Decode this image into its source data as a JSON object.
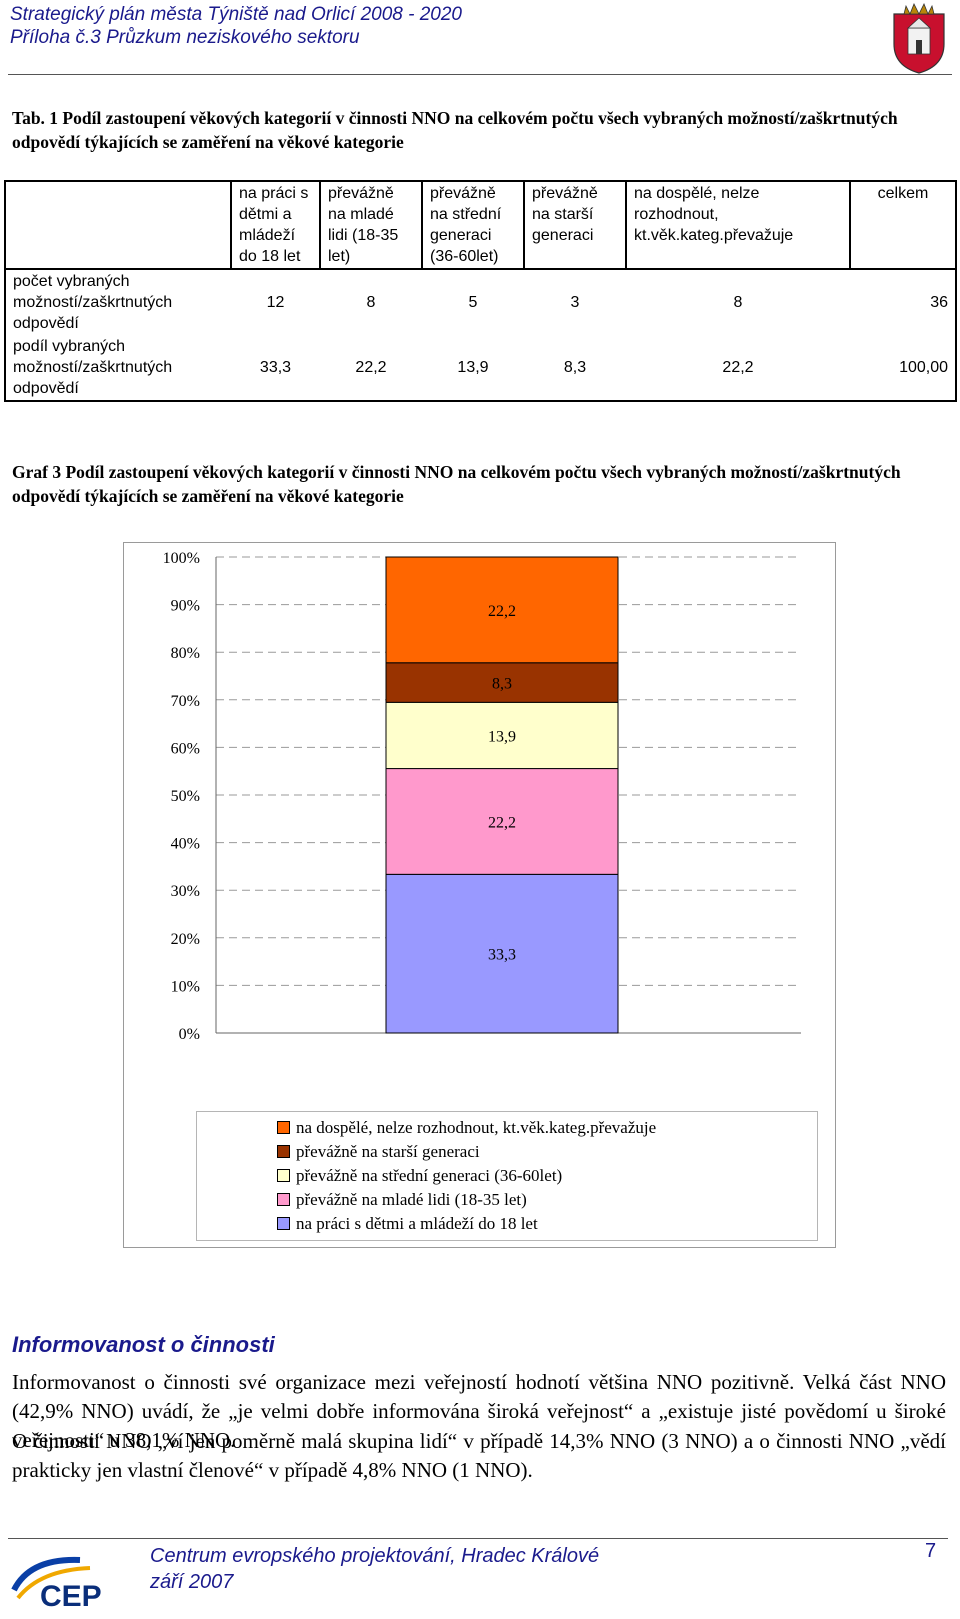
{
  "header": {
    "title_line1": "Strategický plán města Týniště nad Orlicí 2008 - 2020",
    "title_line2": "Příloha č.3 Průzkum neziskového sektoru"
  },
  "table_caption": "Tab. 1   Podíl zastoupení věkových kategorií v činnosti NNO na celkovém počtu všech vybraných možností/zaškrtnutých odpovědí týkajících se zaměření na věkové kategorie",
  "table": {
    "columns": [
      "na práci s dětmi a mládeží do 18 let",
      "převážně na mladé lidi (18-35 let)",
      "převážně na střední generaci (36-60let)",
      "převážně na starší generaci",
      "na dospělé, nelze rozhodnout, kt.věk.kateg.převažuje",
      "celkem"
    ],
    "rows": [
      {
        "label": "počet vybraných možností/zaškrtnutých odpovědí",
        "values": [
          "12",
          "8",
          "5",
          "3",
          "8",
          "36"
        ]
      },
      {
        "label": "podíl vybraných možností/zaškrtnutých odpovědí",
        "values": [
          "33,3",
          "22,2",
          "13,9",
          "8,3",
          "22,2",
          "100,00"
        ]
      }
    ]
  },
  "graph_caption": "Graf 3   Podíl zastoupení věkových kategorií v činnosti NNO na celkovém počtu všech vybraných možností/zaškrtnutých odpovědí týkajících se zaměření na věkové kategorie",
  "chart_data": {
    "type": "bar",
    "stacked": true,
    "percent_axis": true,
    "ylim": [
      0,
      100
    ],
    "yticks": [
      "0%",
      "10%",
      "20%",
      "30%",
      "40%",
      "50%",
      "60%",
      "70%",
      "80%",
      "90%",
      "100%"
    ],
    "grid": "dashed horizontal",
    "legend_position": "bottom",
    "series": [
      {
        "name": "na práci s dětmi a mládeží do 18 let",
        "value": 33.3,
        "label": "33,3",
        "color": "#9999ff"
      },
      {
        "name": "převážně na mladé lidi (18-35 let)",
        "value": 22.2,
        "label": "22,2",
        "color": "#ff99cc"
      },
      {
        "name": "převážně na střední generaci (36-60let)",
        "value": 13.9,
        "label": "13,9",
        "color": "#ffffcc"
      },
      {
        "name": "převážně na starší generaci",
        "value": 8.3,
        "label": "8,3",
        "color": "#993300"
      },
      {
        "name": "na dospělé, nelze rozhodnout, kt.věk.kateg.převažuje",
        "value": 22.2,
        "label": "22,2",
        "color": "#ff6600"
      }
    ]
  },
  "section": {
    "heading": "Informovanost o činnosti",
    "para1": "Informovanost o činnosti své organizace mezi veřejností hodnotí většina NNO pozitivně. Velká část NNO (42,9% NNO) uvádí, že „je velmi dobře informována široká veřejnost“ a „existuje jisté povědomí u široké veřejnosti“ u 38,1% NNO.",
    "para2": "O činnosti NNO „ví jen poměrně malá skupina lidí“ v případě 14,3% NNO (3 NNO) a o činnosti NNO „vědí prakticky jen vlastní členové“ v případě 4,8% NNO (1 NNO)."
  },
  "footer": {
    "org": "Centrum evropského projektování, Hradec Králové",
    "date": "září 2007",
    "page": "7",
    "logo_text": "CEP"
  }
}
